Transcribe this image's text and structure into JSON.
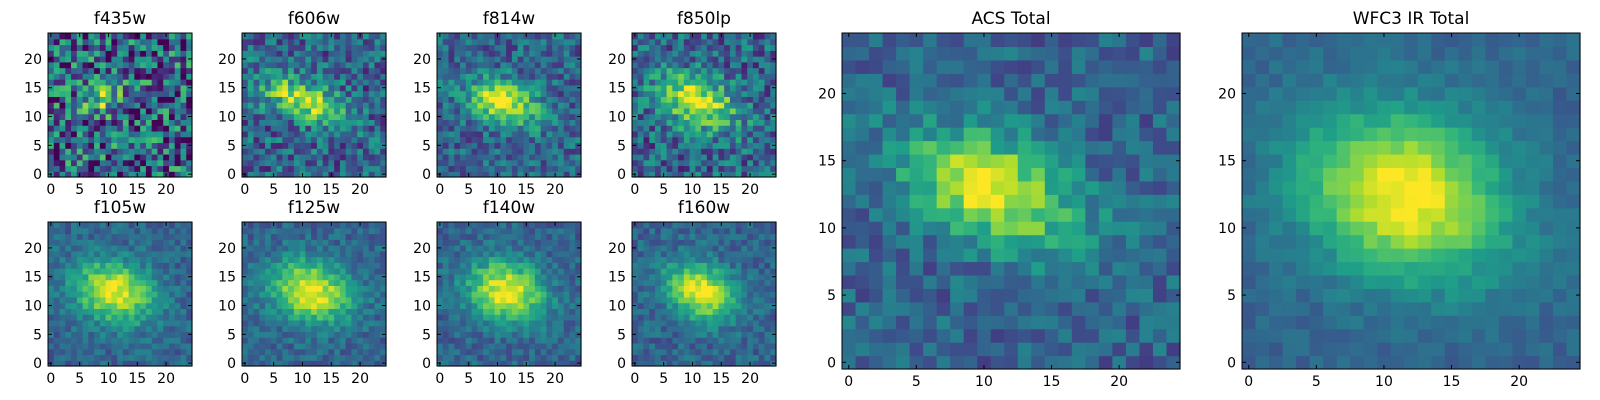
{
  "chart_data": [
    {
      "type": "heatmap",
      "title": "f435w",
      "xticks": [
        "0",
        "5",
        "10",
        "15",
        "20"
      ],
      "yticks": [
        "0",
        "5",
        "10",
        "15",
        "20"
      ],
      "xlim": [
        0,
        25
      ],
      "ylim": [
        0,
        25
      ],
      "colormap": "viridis",
      "grid": false,
      "noise": 0.5,
      "peak": 0.7,
      "sigma": [
        2.5,
        1.8
      ],
      "center": [
        9,
        13.5
      ],
      "angle": -0.25
    },
    {
      "type": "heatmap",
      "title": "f606w",
      "xticks": [
        "0",
        "5",
        "10",
        "15",
        "20"
      ],
      "yticks": [
        "0",
        "5",
        "10",
        "15",
        "20"
      ],
      "xlim": [
        0,
        25
      ],
      "ylim": [
        0,
        25
      ],
      "colormap": "viridis",
      "grid": false,
      "noise": 0.3,
      "peak": 0.85,
      "sigma": [
        5,
        2.2
      ],
      "center": [
        10,
        13
      ],
      "angle": -0.35
    },
    {
      "type": "heatmap",
      "title": "f814w",
      "xticks": [
        "0",
        "5",
        "10",
        "15",
        "20"
      ],
      "yticks": [
        "0",
        "5",
        "10",
        "15",
        "20"
      ],
      "xlim": [
        0,
        25
      ],
      "ylim": [
        0,
        25
      ],
      "colormap": "viridis",
      "grid": false,
      "noise": 0.25,
      "peak": 0.9,
      "sigma": [
        4.5,
        2.6
      ],
      "center": [
        11,
        12.5
      ],
      "angle": -0.35
    },
    {
      "type": "heatmap",
      "title": "f850lp",
      "xticks": [
        "0",
        "5",
        "10",
        "15",
        "20"
      ],
      "yticks": [
        "0",
        "5",
        "10",
        "15",
        "20"
      ],
      "xlim": [
        0,
        25
      ],
      "ylim": [
        0,
        25
      ],
      "colormap": "viridis",
      "grid": false,
      "noise": 0.3,
      "peak": 0.9,
      "sigma": [
        5,
        3
      ],
      "center": [
        11,
        12.5
      ],
      "angle": -0.4
    },
    {
      "type": "heatmap",
      "title": "f105w",
      "xticks": [
        "0",
        "5",
        "10",
        "15",
        "20"
      ],
      "yticks": [
        "0",
        "5",
        "10",
        "15",
        "20"
      ],
      "xlim": [
        0,
        25
      ],
      "ylim": [
        0,
        25
      ],
      "colormap": "viridis",
      "grid": false,
      "noise": 0.15,
      "peak": 0.95,
      "sigma": [
        5,
        3.6
      ],
      "center": [
        11,
        12.5
      ],
      "angle": -0.3
    },
    {
      "type": "heatmap",
      "title": "f125w",
      "xticks": [
        "0",
        "5",
        "10",
        "15",
        "20"
      ],
      "yticks": [
        "0",
        "5",
        "10",
        "15",
        "20"
      ],
      "xlim": [
        0,
        25
      ],
      "ylim": [
        0,
        25
      ],
      "colormap": "viridis",
      "grid": false,
      "noise": 0.15,
      "peak": 0.95,
      "sigma": [
        5,
        3.6
      ],
      "center": [
        11.5,
        12.5
      ],
      "angle": -0.3
    },
    {
      "type": "heatmap",
      "title": "f140w",
      "xticks": [
        "0",
        "5",
        "10",
        "15",
        "20"
      ],
      "yticks": [
        "0",
        "5",
        "10",
        "15",
        "20"
      ],
      "xlim": [
        0,
        25
      ],
      "ylim": [
        0,
        25
      ],
      "colormap": "viridis",
      "grid": false,
      "noise": 0.15,
      "peak": 0.95,
      "sigma": [
        4.8,
        3.6
      ],
      "center": [
        11.5,
        12.5
      ],
      "angle": -0.35
    },
    {
      "type": "heatmap",
      "title": "f160w",
      "xticks": [
        "0",
        "5",
        "10",
        "15",
        "20"
      ],
      "yticks": [
        "0",
        "5",
        "10",
        "15",
        "20"
      ],
      "xlim": [
        0,
        25
      ],
      "ylim": [
        0,
        25
      ],
      "colormap": "viridis",
      "grid": false,
      "noise": 0.15,
      "peak": 0.95,
      "sigma": [
        4.5,
        3.2
      ],
      "center": [
        11.5,
        12.5
      ],
      "angle": -0.4
    },
    {
      "type": "heatmap",
      "title": "ACS Total",
      "xticks": [
        "0",
        "5",
        "10",
        "15",
        "20"
      ],
      "yticks": [
        "0",
        "5",
        "10",
        "15",
        "20"
      ],
      "xlim": [
        0,
        25
      ],
      "ylim": [
        0,
        25
      ],
      "colormap": "viridis",
      "grid": false,
      "noise": 0.18,
      "peak": 0.95,
      "sigma": [
        4.8,
        2.6
      ],
      "center": [
        10.5,
        13
      ],
      "angle": -0.4
    },
    {
      "type": "heatmap",
      "title": "WFC3 IR Total",
      "xticks": [
        "0",
        "5",
        "10",
        "15",
        "20"
      ],
      "yticks": [
        "0",
        "5",
        "10",
        "15",
        "20"
      ],
      "xlim": [
        0,
        25
      ],
      "ylim": [
        0,
        25
      ],
      "colormap": "viridis",
      "grid": false,
      "noise": 0.08,
      "peak": 1.0,
      "sigma": [
        5.5,
        4.2
      ],
      "center": [
        11.5,
        12.5
      ],
      "angle": -0.35
    }
  ]
}
